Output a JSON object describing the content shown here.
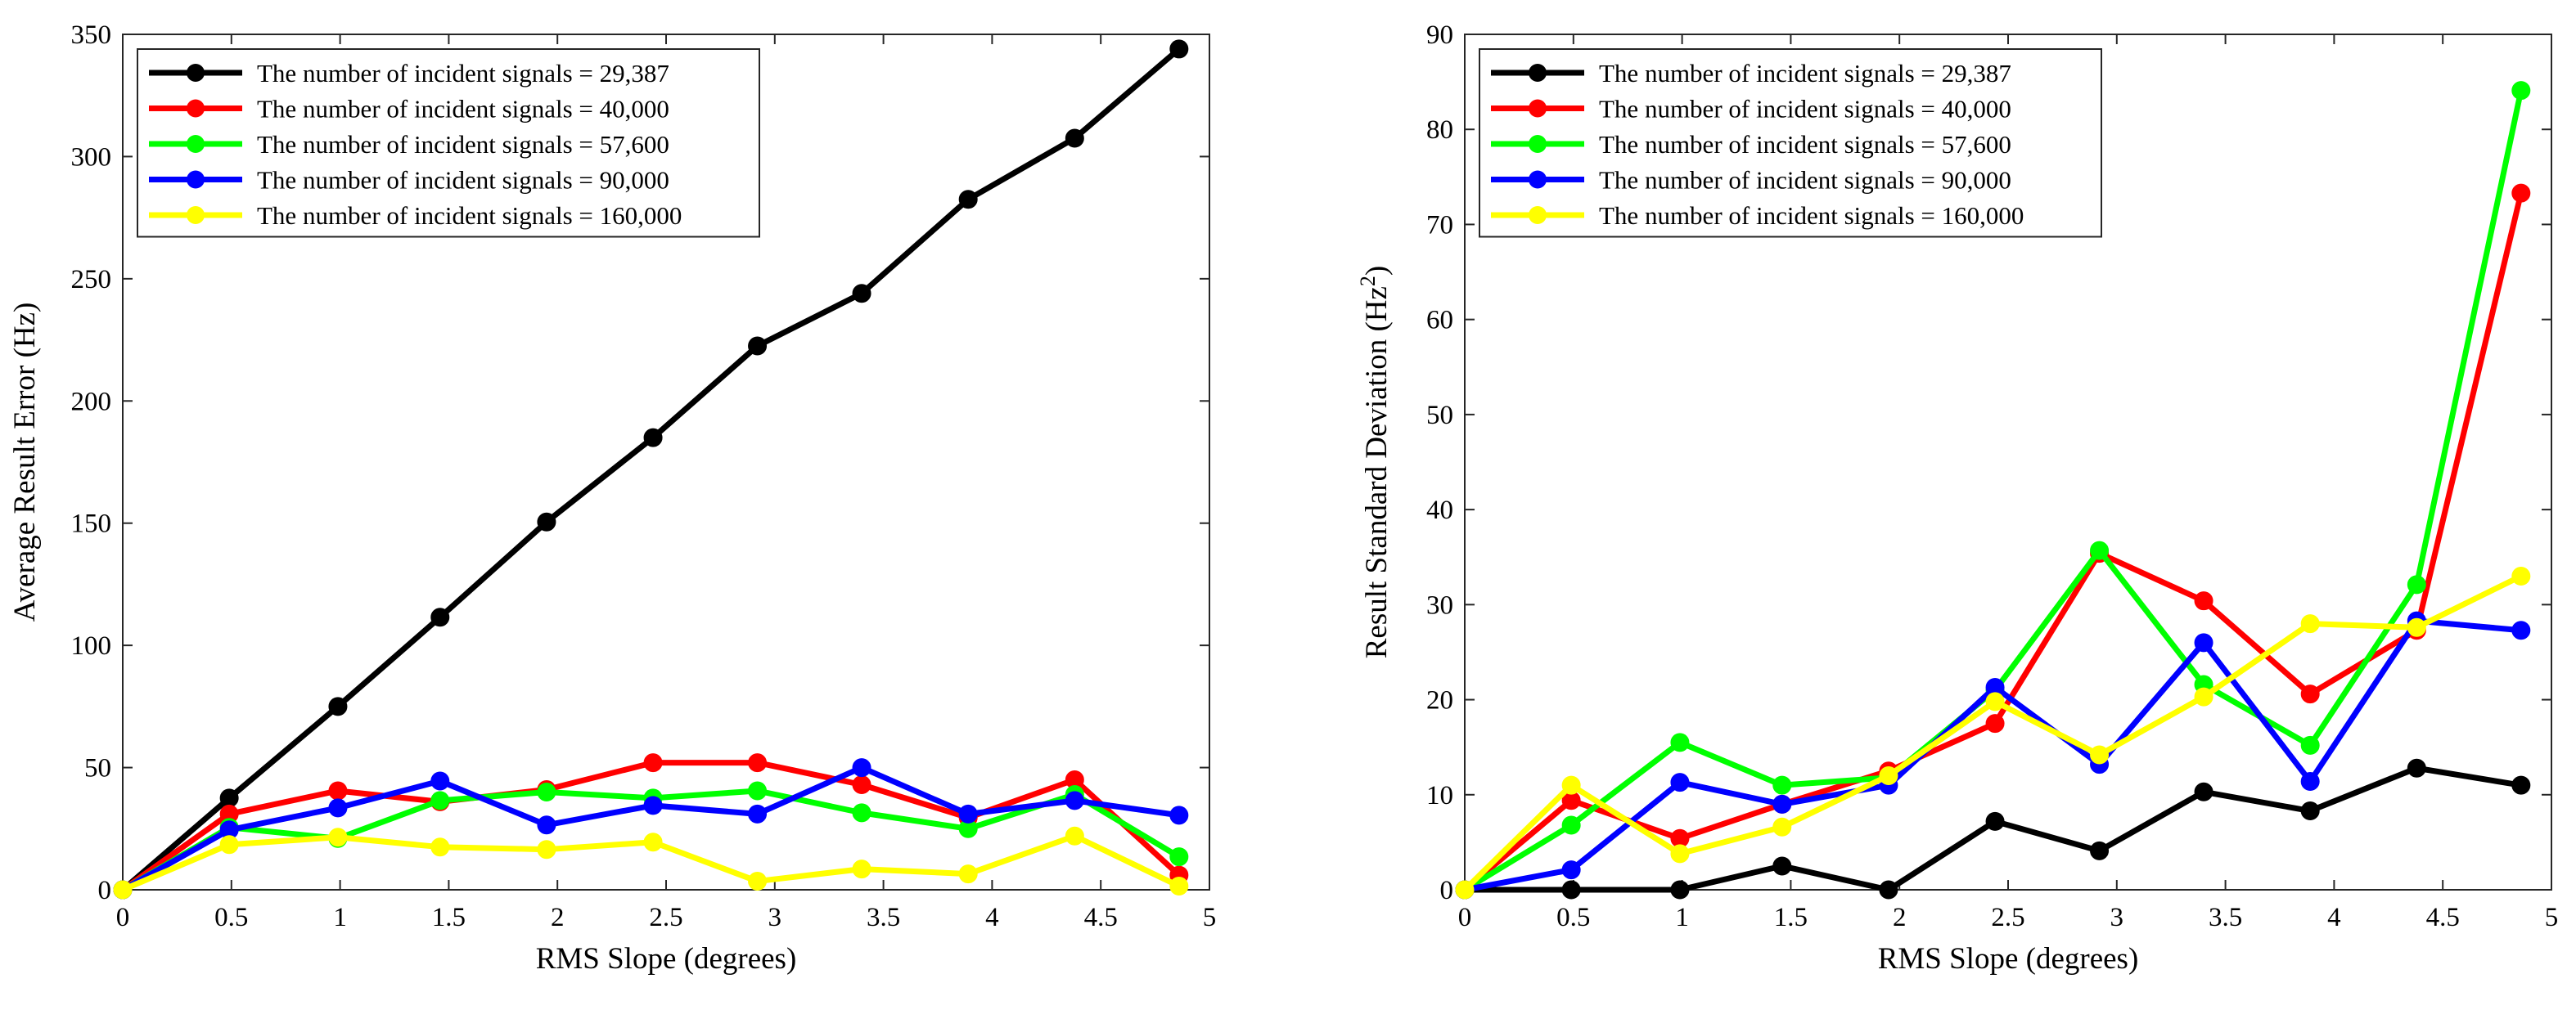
{
  "chart_data": [
    {
      "type": "line",
      "title": "",
      "xlabel": "RMS Slope (degrees)",
      "ylabel": "Average Result Error (Hz)",
      "ylabel_sup": "",
      "ylabel_suffix": "",
      "xlim": [
        0,
        5
      ],
      "ylim": [
        0,
        350
      ],
      "xticks": [
        0,
        0.5,
        1,
        1.5,
        2,
        2.5,
        3,
        3.5,
        4,
        4.5,
        5
      ],
      "yticks": [
        0,
        50,
        100,
        150,
        200,
        250,
        300,
        350
      ],
      "legend_position": "top-left",
      "x": [
        0,
        0.49,
        0.99,
        1.46,
        1.95,
        2.44,
        2.92,
        3.4,
        3.89,
        4.38,
        4.86
      ],
      "series": [
        {
          "name": "The number of incident signals = 29,387",
          "color": "#000000",
          "values": [
            0,
            37.5,
            75,
            111.5,
            150.5,
            185,
            222.5,
            244,
            282.5,
            307.5,
            344
          ]
        },
        {
          "name": "The number of incident signals = 40,000",
          "color": "#ff0000",
          "values": [
            0,
            31,
            40.5,
            36,
            41,
            52,
            52,
            43,
            29.5,
            45,
            6
          ]
        },
        {
          "name": "The number of incident signals = 57,600",
          "color": "#00ff00",
          "values": [
            0,
            25.5,
            21,
            36.5,
            40,
            37.5,
            40.5,
            31.5,
            25,
            39,
            13.5
          ]
        },
        {
          "name": "The number of incident signals = 90,000",
          "color": "#0000ff",
          "values": [
            0,
            24.5,
            33.5,
            44.5,
            26.5,
            34.5,
            31,
            50,
            31,
            36.5,
            30.5
          ]
        },
        {
          "name": "The number of incident signals = 160,000",
          "color": "#ffff00",
          "values": [
            0,
            18.5,
            21.5,
            17.5,
            16.5,
            19.5,
            3.5,
            8.5,
            6.5,
            22,
            1.5
          ]
        }
      ]
    },
    {
      "type": "line",
      "title": "",
      "xlabel": "RMS Slope (degrees)",
      "ylabel": "Result Standard Deviation (Hz",
      "ylabel_sup": "2",
      "ylabel_suffix": ")",
      "xlim": [
        0,
        5
      ],
      "ylim": [
        0,
        90
      ],
      "xticks": [
        0,
        0.5,
        1,
        1.5,
        2,
        2.5,
        3,
        3.5,
        4,
        4.5,
        5
      ],
      "yticks": [
        0,
        10,
        20,
        30,
        40,
        50,
        60,
        70,
        80,
        90
      ],
      "legend_position": "top-left",
      "x": [
        0,
        0.49,
        0.99,
        1.46,
        1.95,
        2.44,
        2.92,
        3.4,
        3.89,
        4.38,
        4.86
      ],
      "series": [
        {
          "name": "The number of incident signals = 29,387",
          "color": "#000000",
          "values": [
            0,
            0,
            0,
            2.5,
            0,
            7.2,
            4.1,
            10.3,
            8.3,
            12.8,
            11
          ]
        },
        {
          "name": "The number of incident signals = 40,000",
          "color": "#ff0000",
          "values": [
            0,
            9.4,
            5.4,
            9,
            12.5,
            17.5,
            35.4,
            30.4,
            20.6,
            27.3,
            73.3
          ]
        },
        {
          "name": "The number of incident signals = 57,600",
          "color": "#00ff00",
          "values": [
            0,
            6.8,
            15.5,
            11,
            11.8,
            21,
            35.7,
            21.6,
            15.2,
            32.1,
            84.1
          ]
        },
        {
          "name": "The number of incident signals = 90,000",
          "color": "#0000ff",
          "values": [
            0,
            2.1,
            11.3,
            9,
            11,
            21.3,
            13.2,
            26,
            11.4,
            28.3,
            27.3
          ]
        },
        {
          "name": "The number of incident signals = 160,000",
          "color": "#ffff00",
          "values": [
            0,
            11,
            3.8,
            6.6,
            12,
            19.8,
            14.2,
            20.3,
            28,
            27.6,
            33
          ]
        }
      ]
    }
  ]
}
